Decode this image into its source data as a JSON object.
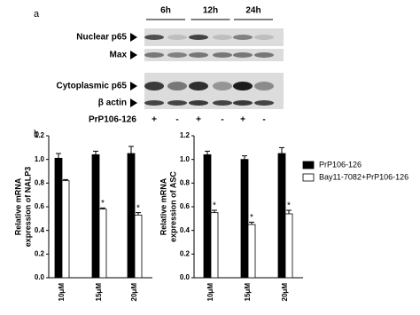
{
  "blot": {
    "panel_label": "a",
    "timepoints": [
      "6h",
      "12h",
      "24h"
    ],
    "rows": [
      "Nuclear p65",
      "Max",
      "Cytoplasmic p65",
      "β actin"
    ],
    "treatment": {
      "label": "PrP106-126",
      "signs": [
        "+",
        "-",
        "+",
        "-",
        "+",
        "-"
      ]
    }
  },
  "panel_b_label": "b",
  "chart_data": [
    {
      "type": "bar",
      "ylabel": [
        "Relative mRNA",
        "expression of NALP3"
      ],
      "categories": [
        "10μM",
        "15μM",
        "20μM"
      ],
      "series": [
        {
          "name": "PrP106-126",
          "color": "#000000",
          "values": [
            1.01,
            1.04,
            1.05
          ],
          "errors": [
            0.04,
            0.03,
            0.06
          ],
          "marks": [
            null,
            null,
            null
          ]
        },
        {
          "name": "Bay11-7082+PrP106-126",
          "color": "#ffffff",
          "values": [
            0.82,
            0.58,
            0.53
          ],
          "errors": [
            0.01,
            0.01,
            0.02
          ],
          "marks": [
            null,
            "*",
            "*"
          ]
        }
      ],
      "ylim": [
        0,
        1.2
      ],
      "yticks": [
        {
          "value": 0,
          "label": "0.0"
        },
        {
          "value": 0.2,
          "label": "0.2"
        },
        {
          "value": 0.4,
          "label": "0.4"
        },
        {
          "value": 0.6,
          "label": "0.6"
        },
        {
          "value": 0.8,
          "label": "0.8"
        },
        {
          "value": 1,
          "label": "1.0"
        },
        {
          "value": 1.2,
          "label": "1.2"
        }
      ]
    },
    {
      "type": "bar",
      "ylabel": [
        "Relative mRNA",
        "expression of ASC"
      ],
      "categories": [
        "10μM",
        "15μM",
        "20μM"
      ],
      "series": [
        {
          "name": "PrP106-126",
          "color": "#000000",
          "values": [
            1.04,
            1.0,
            1.05
          ],
          "errors": [
            0.03,
            0.03,
            0.05
          ],
          "marks": [
            null,
            null,
            null
          ]
        },
        {
          "name": "Bay11-7082+PrP106-126",
          "color": "#ffffff",
          "values": [
            0.55,
            0.45,
            0.54
          ],
          "errors": [
            0.02,
            0.02,
            0.03
          ],
          "marks": [
            "*",
            "*",
            "*"
          ]
        }
      ],
      "ylim": [
        0,
        1.2
      ],
      "yticks": [
        {
          "value": 0,
          "label": "0.0"
        },
        {
          "value": 0.2,
          "label": "0.2"
        },
        {
          "value": 0.4,
          "label": "0.4"
        },
        {
          "value": 0.6,
          "label": "0.6"
        },
        {
          "value": 0.8,
          "label": "0.8"
        },
        {
          "value": 1,
          "label": "1.0"
        },
        {
          "value": 1.2,
          "label": "1.2"
        }
      ],
      "legend": "right"
    }
  ]
}
